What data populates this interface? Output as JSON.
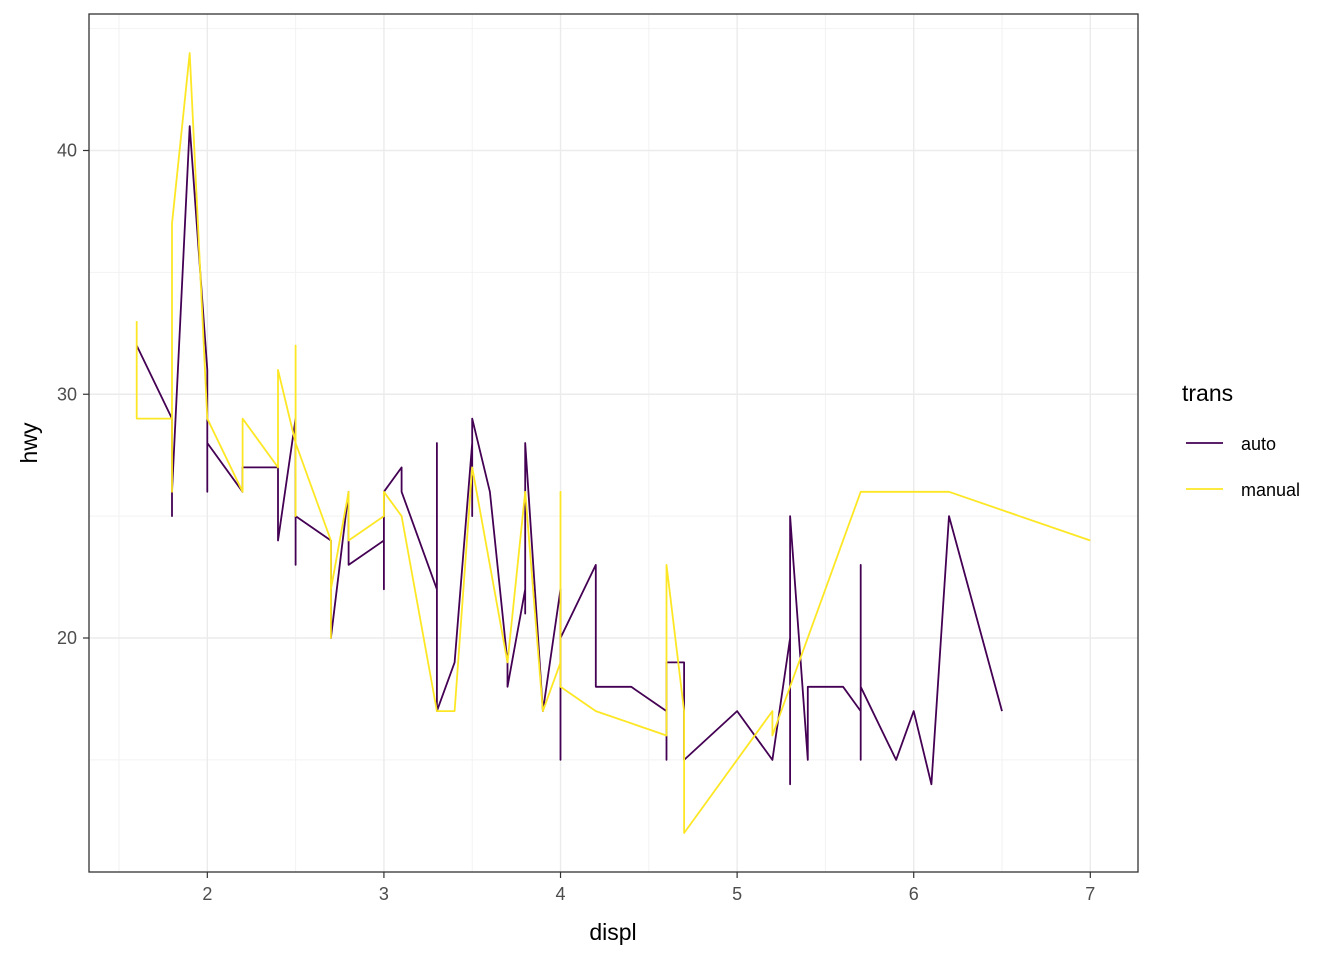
{
  "chart_data": {
    "type": "line",
    "xlabel": "displ",
    "ylabel": "hwy",
    "xlim": [
      1.33,
      7.27
    ],
    "ylim": [
      10.4,
      45.6
    ],
    "x_ticks": [
      2,
      3,
      4,
      5,
      6,
      7
    ],
    "y_ticks": [
      20,
      30,
      40
    ],
    "grid": true,
    "legend": {
      "title": "trans",
      "position": "right"
    },
    "series": [
      {
        "name": "auto",
        "color": "#440154",
        "points": [
          [
            1.6,
            32
          ],
          [
            1.8,
            29
          ],
          [
            1.8,
            25
          ],
          [
            1.8,
            26
          ],
          [
            1.9,
            41
          ],
          [
            2.0,
            31
          ],
          [
            2.0,
            26
          ],
          [
            2.0,
            28
          ],
          [
            2.2,
            26
          ],
          [
            2.2,
            27
          ],
          [
            2.4,
            27
          ],
          [
            2.4,
            24
          ],
          [
            2.5,
            29
          ],
          [
            2.5,
            23
          ],
          [
            2.5,
            25
          ],
          [
            2.7,
            24
          ],
          [
            2.7,
            20
          ],
          [
            2.8,
            26
          ],
          [
            2.8,
            23
          ],
          [
            3.0,
            24
          ],
          [
            3.0,
            22
          ],
          [
            3.0,
            26
          ],
          [
            3.1,
            27
          ],
          [
            3.1,
            26
          ],
          [
            3.3,
            22
          ],
          [
            3.3,
            28
          ],
          [
            3.3,
            17
          ],
          [
            3.4,
            19
          ],
          [
            3.5,
            28
          ],
          [
            3.5,
            25
          ],
          [
            3.5,
            29
          ],
          [
            3.6,
            26
          ],
          [
            3.7,
            19
          ],
          [
            3.7,
            18
          ],
          [
            3.8,
            22
          ],
          [
            3.8,
            21
          ],
          [
            3.8,
            28
          ],
          [
            3.9,
            17
          ],
          [
            4.0,
            22
          ],
          [
            4.0,
            15
          ],
          [
            4.0,
            20
          ],
          [
            4.2,
            23
          ],
          [
            4.2,
            18
          ],
          [
            4.4,
            18
          ],
          [
            4.6,
            17
          ],
          [
            4.6,
            15
          ],
          [
            4.6,
            19
          ],
          [
            4.7,
            19
          ],
          [
            4.7,
            15
          ],
          [
            5.0,
            17
          ],
          [
            5.2,
            15
          ],
          [
            5.3,
            20
          ],
          [
            5.3,
            14
          ],
          [
            5.3,
            25
          ],
          [
            5.4,
            15
          ],
          [
            5.4,
            18
          ],
          [
            5.6,
            18
          ],
          [
            5.7,
            17
          ],
          [
            5.7,
            23
          ],
          [
            5.7,
            15
          ],
          [
            5.7,
            18
          ],
          [
            5.9,
            15
          ],
          [
            6.0,
            17
          ],
          [
            6.1,
            14
          ],
          [
            6.2,
            25
          ],
          [
            6.5,
            17
          ]
        ]
      },
      {
        "name": "manual",
        "color": "#fde725",
        "points": [
          [
            1.6,
            33
          ],
          [
            1.6,
            29
          ],
          [
            1.8,
            29
          ],
          [
            1.8,
            26
          ],
          [
            1.8,
            37
          ],
          [
            1.9,
            44
          ],
          [
            2.0,
            29
          ],
          [
            2.2,
            26
          ],
          [
            2.2,
            29
          ],
          [
            2.4,
            27
          ],
          [
            2.4,
            31
          ],
          [
            2.5,
            28
          ],
          [
            2.5,
            25
          ],
          [
            2.5,
            32
          ],
          [
            2.5,
            28
          ],
          [
            2.7,
            24
          ],
          [
            2.7,
            20
          ],
          [
            2.7,
            22
          ],
          [
            2.8,
            26
          ],
          [
            2.8,
            24
          ],
          [
            3.0,
            25
          ],
          [
            3.0,
            26
          ],
          [
            3.1,
            25
          ],
          [
            3.3,
            17
          ],
          [
            3.4,
            17
          ],
          [
            3.5,
            27
          ],
          [
            3.7,
            19
          ],
          [
            3.8,
            26
          ],
          [
            3.9,
            17
          ],
          [
            4.0,
            19
          ],
          [
            4.0,
            26
          ],
          [
            4.0,
            18
          ],
          [
            4.2,
            17
          ],
          [
            4.6,
            16
          ],
          [
            4.6,
            23
          ],
          [
            4.7,
            17
          ],
          [
            4.7,
            12
          ],
          [
            5.2,
            17
          ],
          [
            5.2,
            16
          ],
          [
            5.7,
            26
          ],
          [
            6.2,
            26
          ],
          [
            7.0,
            24
          ]
        ]
      }
    ]
  }
}
